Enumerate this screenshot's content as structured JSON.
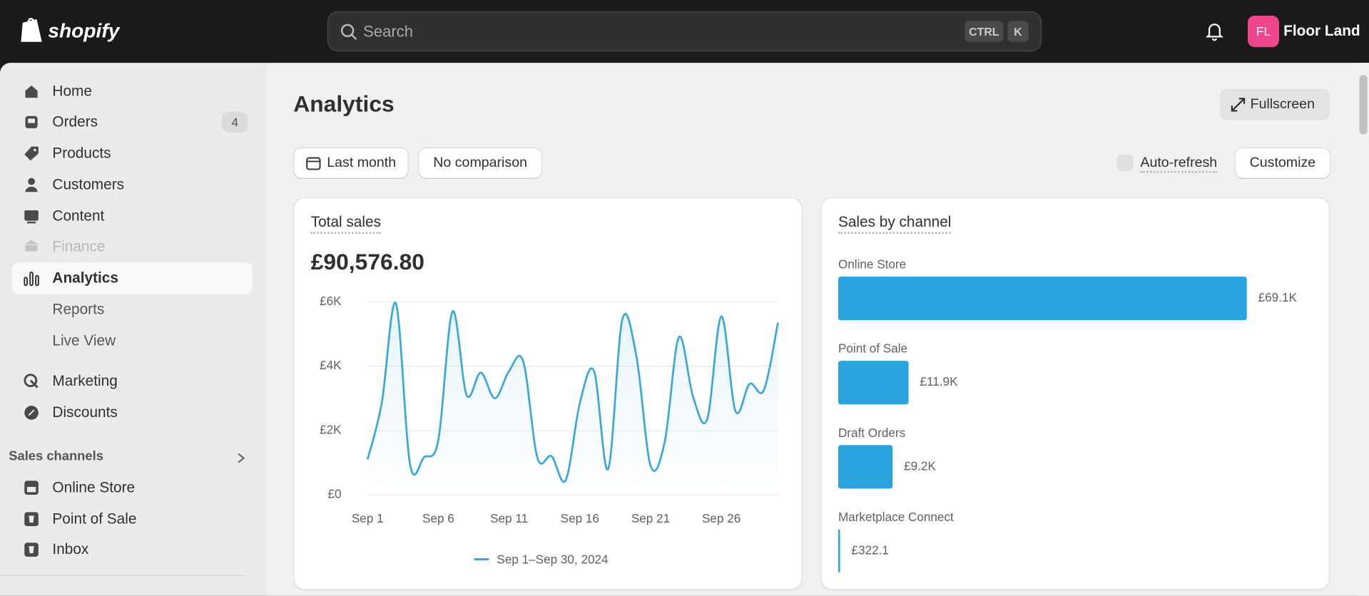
{
  "header": {
    "logo": "shopify",
    "search_placeholder": "Search",
    "shortcut": [
      "CTRL",
      "K"
    ],
    "avatar": "FL",
    "store": "Floor Land"
  },
  "nav": {
    "items": [
      {
        "label": "Home"
      },
      {
        "label": "Orders",
        "badge": "4"
      },
      {
        "label": "Products"
      },
      {
        "label": "Customers"
      },
      {
        "label": "Content"
      },
      {
        "label": "Finance"
      },
      {
        "label": "Analytics"
      }
    ],
    "sub": [
      "Reports",
      "Live View"
    ],
    "more": [
      "Marketing",
      "Discounts"
    ],
    "sales_channels_title": "Sales channels",
    "channels": [
      "Online Store",
      "Point of Sale",
      "Inbox"
    ]
  },
  "page": {
    "title": "Analytics",
    "fullscreen": "Fullscreen",
    "date": "Last month",
    "comparison": "No comparison",
    "auto_refresh": "Auto-refresh",
    "customize": "Customize"
  },
  "chart_data": [
    {
      "type": "line",
      "title": "Total sales",
      "total": "£90,576.80",
      "categories": [
        "Sep 1",
        null,
        null,
        null,
        null,
        "Sep 6",
        null,
        null,
        null,
        null,
        "Sep 11",
        null,
        null,
        null,
        null,
        "Sep 16",
        null,
        null,
        null,
        null,
        "Sep 21",
        null,
        null,
        null,
        null,
        "Sep 26",
        null,
        null,
        null,
        null
      ],
      "series": [
        {
          "name": "Sep 1–Sep 30, 2024",
          "color": "#3aa7dc",
          "values": [
            1100,
            2850,
            5950,
            950,
            1170,
            1700,
            5700,
            3100,
            3800,
            3000,
            3850,
            4150,
            1150,
            1200,
            450,
            2850,
            3850,
            800,
            5450,
            4300,
            900,
            1650,
            4900,
            3050,
            2350,
            5550,
            2600,
            3450,
            3250,
            5350
          ]
        }
      ],
      "ylim": [
        0,
        6000
      ],
      "yticks": [
        {
          "value": 0,
          "label": "£0"
        },
        {
          "value": 2000,
          "label": "£2K"
        },
        {
          "value": 4000,
          "label": "£4K"
        },
        {
          "value": 6000,
          "label": "£6K"
        }
      ],
      "grid": true
    },
    {
      "type": "hbar",
      "title": "Sales by channel",
      "categories": [
        "Online Store",
        "Point of Sale",
        "Draft Orders",
        "Marketplace Connect"
      ],
      "values": [
        69100,
        11900,
        9200,
        322.1
      ],
      "value_labels": [
        "£69.1K",
        "£11.9K",
        "£9.2K",
        "£322.1"
      ],
      "color": "#2ba3df"
    }
  ]
}
